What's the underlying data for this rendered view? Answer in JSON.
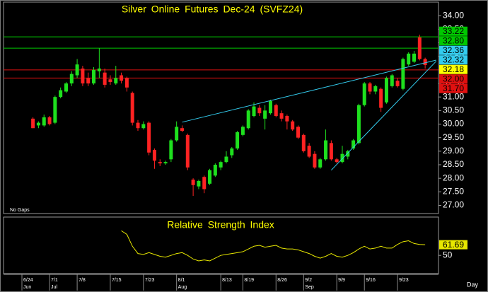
{
  "chart_data": [
    {
      "type": "candlestick",
      "title": "Silver Online Futures Dec-24 (SVFZ24)",
      "annotation": "No Gaps",
      "xlabel": "Day",
      "categories": [
        "6/24",
        null,
        null,
        null,
        null,
        "7/1",
        null,
        null,
        null,
        null,
        "7/8",
        null,
        null,
        null,
        null,
        null,
        "7/15",
        null,
        null,
        null,
        null,
        null,
        "7/23",
        null,
        null,
        null,
        null,
        null,
        "8/1",
        null,
        null,
        null,
        null,
        null,
        null,
        null,
        "8/13",
        null,
        null,
        null,
        "8/19",
        null,
        null,
        null,
        null,
        null,
        "8/26",
        null,
        null,
        null,
        null,
        "9/2",
        null,
        null,
        null,
        null,
        null,
        "9/9",
        null,
        null,
        null,
        null,
        "9/16",
        null,
        null,
        null,
        null,
        null,
        "9/23",
        null,
        null,
        null,
        null,
        null
      ],
      "months": [
        "Jun",
        null,
        null,
        null,
        null,
        "Jul",
        null,
        null,
        null,
        null,
        null,
        null,
        null,
        null,
        null,
        null,
        null,
        null,
        null,
        null,
        null,
        null,
        null,
        null,
        null,
        null,
        null,
        null,
        "Aug",
        null,
        null,
        null,
        null,
        null,
        null,
        null,
        null,
        null,
        null,
        null,
        null,
        null,
        null,
        null,
        null,
        null,
        null,
        null,
        null,
        null,
        null,
        "Sep",
        null,
        null,
        null,
        null,
        null,
        null,
        null,
        null,
        null,
        null,
        null,
        null,
        null,
        null,
        null,
        null,
        null,
        null,
        null,
        null,
        null,
        null
      ],
      "open": [
        null,
        null,
        30.2,
        29.95,
        29.95,
        30.25,
        30.05,
        31.0,
        31.2,
        31.5,
        31.8,
        32.05,
        31.7,
        31.5,
        31.95,
        31.9,
        31.65,
        31.5,
        31.8,
        31.7,
        31.15,
        30.05,
        29.85,
        30.05,
        29.05,
        28.6,
        28.55,
        28.7,
        29.4,
        29.85,
        29.6,
        27.95,
        27.7,
        28.05,
        27.8,
        28.1,
        28.4,
        28.6,
        28.85,
        29.1,
        29.6,
        29.85,
        30.3,
        30.6,
        30.2,
        30.4,
        30.7,
        30.4,
        30.3,
        30.1,
        29.9,
        29.6,
        29.2,
        28.9,
        28.4,
        28.7,
        29.3,
        28.7,
        28.6,
        28.8,
        29.1,
        29.3,
        30.7,
        31.5,
        31.2,
        31.3,
        30.8,
        31.4,
        31.6,
        31.3,
        32.2,
        32.3,
        33.2,
        32.4
      ],
      "high": [
        null,
        null,
        30.25,
        30.1,
        30.35,
        30.3,
        31.05,
        31.35,
        31.55,
        31.95,
        32.4,
        32.15,
        31.9,
        32.1,
        32.8,
        32.05,
        31.8,
        32.15,
        31.9,
        31.75,
        31.2,
        30.15,
        30.1,
        30.1,
        29.1,
        28.7,
        28.65,
        29.45,
        30.1,
        29.95,
        29.65,
        28.0,
        27.95,
        28.1,
        28.35,
        28.55,
        28.65,
        29.0,
        29.15,
        29.75,
        29.95,
        30.55,
        30.8,
        30.7,
        30.7,
        30.9,
        30.75,
        30.5,
        30.35,
        30.15,
        29.95,
        29.65,
        29.3,
        29.0,
        28.75,
        29.8,
        29.4,
        28.75,
        29.2,
        29.05,
        29.45,
        30.75,
        31.55,
        31.55,
        31.45,
        31.35,
        31.75,
        31.85,
        31.7,
        32.45,
        32.65,
        32.7,
        33.3,
        32.45
      ],
      "low": [
        null,
        null,
        29.85,
        29.85,
        29.9,
        29.95,
        30.0,
        30.95,
        31.15,
        31.4,
        31.7,
        31.4,
        31.4,
        31.45,
        31.7,
        31.35,
        31.45,
        31.45,
        31.5,
        31.2,
        29.95,
        29.75,
        29.8,
        28.85,
        28.35,
        28.45,
        28.5,
        28.6,
        29.35,
        29.7,
        28.3,
        27.35,
        27.6,
        27.45,
        27.75,
        28.05,
        28.3,
        28.55,
        28.75,
        29.05,
        29.55,
        29.8,
        30.25,
        30.3,
        29.8,
        30.35,
        30.25,
        30.1,
        29.8,
        29.75,
        29.45,
        28.95,
        28.75,
        28.35,
        28.35,
        28.65,
        28.65,
        28.55,
        28.55,
        28.7,
        29.05,
        29.25,
        30.65,
        31.1,
        31.1,
        30.45,
        30.75,
        31.35,
        31.35,
        31.25,
        32.15,
        32.25,
        32.35,
        32.05
      ],
      "close": [
        null,
        null,
        29.85,
        30.05,
        30.25,
        30.0,
        31.0,
        31.25,
        31.5,
        31.85,
        32.2,
        31.5,
        31.5,
        32.0,
        32.05,
        31.45,
        31.55,
        31.7,
        31.6,
        31.35,
        30.05,
        29.85,
        30.0,
        28.95,
        28.65,
        28.55,
        28.6,
        29.4,
        29.9,
        29.75,
        28.4,
        27.75,
        27.9,
        27.6,
        28.3,
        28.5,
        28.6,
        28.8,
        29.1,
        29.7,
        29.9,
        30.5,
        30.65,
        30.4,
        30.5,
        30.85,
        30.3,
        30.2,
        30.1,
        29.8,
        29.5,
        29.0,
        28.8,
        28.4,
        28.7,
        29.4,
        28.7,
        28.6,
        28.9,
        29.0,
        29.4,
        30.7,
        31.5,
        31.2,
        31.4,
        30.6,
        31.7,
        31.8,
        31.4,
        32.4,
        32.6,
        32.6,
        32.4,
        32.18
      ],
      "up_color": "#1ee01e",
      "down_color": "#ff2222",
      "ylim": [
        26.7,
        34.5
      ],
      "yticks": [
        {
          "value": 34,
          "label": "34.00"
        },
        {
          "value": 33.5,
          "label": "33.50"
        },
        {
          "value": 33,
          "label": "33.00"
        },
        {
          "value": 32.5,
          "label": "32.50"
        },
        {
          "value": 32,
          "label": "32.00"
        },
        {
          "value": 31.5,
          "label": "31.50"
        },
        {
          "value": 31,
          "label": "31.00"
        },
        {
          "value": 30.5,
          "label": "30.50"
        },
        {
          "value": 30,
          "label": "30.00"
        },
        {
          "value": 29.5,
          "label": "29.50"
        },
        {
          "value": 29,
          "label": "29.00"
        },
        {
          "value": 28.5,
          "label": "28.50"
        },
        {
          "value": 28,
          "label": "28.00"
        },
        {
          "value": 27.5,
          "label": "27.50"
        },
        {
          "value": 27,
          "label": "27.00"
        }
      ],
      "levels": [
        {
          "value": 33.22,
          "color": "#00c800"
        },
        {
          "value": 32.8,
          "label": "32.80",
          "color": "#00c800"
        },
        {
          "value": 32,
          "label": "32.00",
          "color": "#e01010"
        },
        {
          "value": 31.7,
          "label": "31.70",
          "color": "#e01010"
        }
      ],
      "trendlines": [
        {
          "x": [
            29,
            75
          ],
          "values": [
            30.07,
            32.36
          ],
          "color": "#33ccee"
        },
        {
          "x": [
            56,
            75
          ],
          "values": [
            28.3,
            32.32
          ],
          "color": "#33ccee"
        }
      ],
      "last_color": "#ffff00"
    },
    {
      "type": "line",
      "title": "Relative Strength Index",
      "color": "#e8e800",
      "ylim": [
        30,
        92
      ],
      "yticks": [
        50
      ],
      "values": [
        null,
        null,
        null,
        null,
        null,
        null,
        null,
        null,
        null,
        null,
        null,
        null,
        null,
        null,
        null,
        null,
        null,
        null,
        77,
        73,
        60,
        52,
        51,
        53,
        51,
        49,
        48,
        50,
        52,
        53,
        50,
        46,
        44,
        45,
        44,
        47,
        50,
        51,
        52,
        53,
        54,
        57,
        60,
        61,
        59,
        60,
        61,
        58,
        57,
        57,
        56,
        54,
        52,
        49,
        47,
        49,
        52,
        49,
        48,
        50,
        53,
        57,
        60,
        57,
        58,
        60,
        58,
        58,
        62,
        65,
        66,
        63,
        62,
        61.69
      ]
    }
  ]
}
